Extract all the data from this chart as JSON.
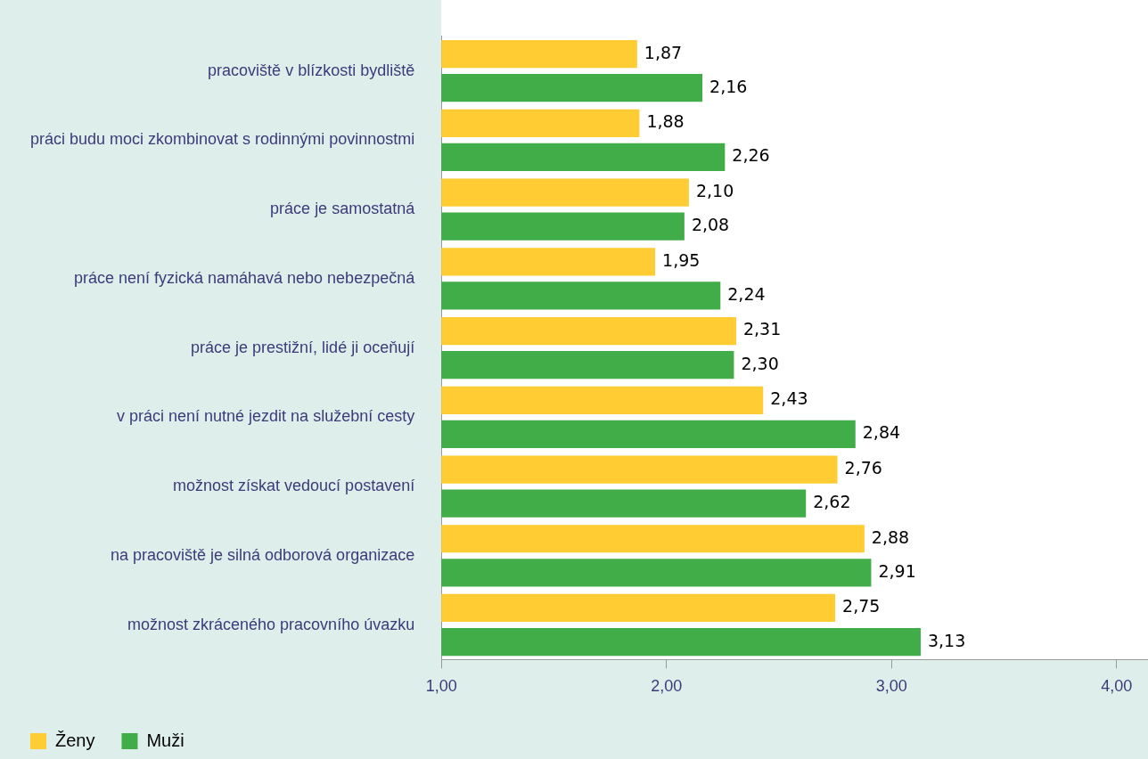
{
  "chart_data": {
    "type": "bar",
    "orientation": "horizontal",
    "categories": [
      "pracoviště v blízkosti bydliště",
      "práci budu moci zkombinovat s rodinnými povinnostmi",
      "práce je samostatná",
      "práce není fyzická namáhavá nebo nebezpečná",
      "práce je prestižní, lidé ji oceňují",
      "v práci není nutné jezdit na služební cesty",
      "možnost získat vedoucí postavení",
      "na pracoviště je silná odborová organizace",
      "možnost zkráceného pracovního úvazku"
    ],
    "series": [
      {
        "name": "Ženy",
        "color": "#ffcc33",
        "values": [
          1.87,
          1.88,
          2.1,
          1.95,
          2.31,
          2.43,
          2.76,
          2.88,
          2.75
        ],
        "value_labels": [
          "1,87",
          "1,88",
          "2,10",
          "1,95",
          "2,31",
          "2,43",
          "2,76",
          "2,88",
          "2,75"
        ]
      },
      {
        "name": "Muži",
        "color": "#40ad49",
        "values": [
          2.16,
          2.26,
          2.08,
          2.24,
          2.3,
          2.84,
          2.62,
          2.91,
          3.13
        ],
        "value_labels": [
          "2,16",
          "2,26",
          "2,08",
          "2,24",
          "2,30",
          "2,84",
          "2,62",
          "2,91",
          "3,13"
        ]
      }
    ],
    "xlim": [
      1,
      4.14
    ],
    "xticks": [
      {
        "value": 1,
        "label": "1,00"
      },
      {
        "value": 2,
        "label": "2,00"
      },
      {
        "value": 3,
        "label": "3,00"
      },
      {
        "value": 4,
        "label": "4,00"
      }
    ],
    "grid": false,
    "legend": "bottom left"
  }
}
